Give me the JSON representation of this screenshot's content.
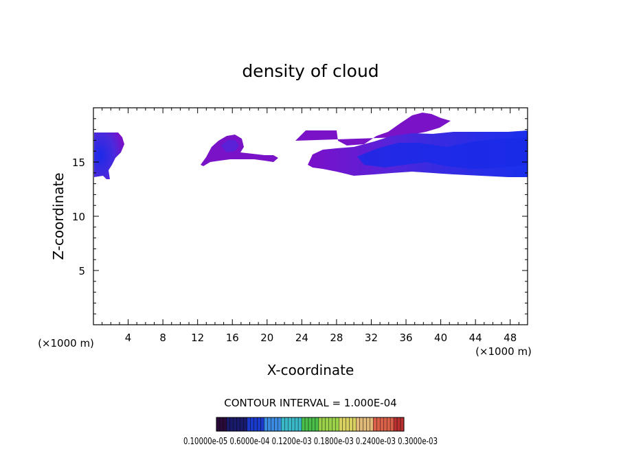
{
  "chart_data": {
    "type": "heatmap",
    "title": "density of cloud",
    "xlabel": "X-coordinate",
    "ylabel": "Z-coordinate",
    "x_unit_label": "(×1000 m)",
    "y_unit_label": "(×1000 m)",
    "xlim": [
      0,
      50
    ],
    "ylim": [
      0,
      20
    ],
    "x_ticks": [
      "4",
      "8",
      "12",
      "16",
      "20",
      "24",
      "28",
      "32",
      "36",
      "40",
      "44",
      "48"
    ],
    "x_tick_values": [
      4,
      8,
      12,
      16,
      20,
      24,
      28,
      32,
      36,
      40,
      44,
      48
    ],
    "y_ticks": [
      "5",
      "10",
      "15"
    ],
    "y_tick_values": [
      5,
      10,
      15
    ],
    "contour_interval_label": "CONTOUR INTERVAL = 1.000E-04",
    "colorbar_labels": "0.10000e-05 0.6000e-04 0.1200e-03 0.1800e-03 0.2400e-03 0.3000e-03",
    "colorbar_colors": [
      "#2a0a3a",
      "#1a1a6a",
      "#1a3acc",
      "#3a8ae0",
      "#3ab8c8",
      "#4ac04a",
      "#9ad04a",
      "#d8d060",
      "#e0b878",
      "#d86048",
      "#b83030"
    ],
    "field_colors": {
      "low": "#7a10c8",
      "mid": "#4a2adc",
      "high": "#1a2ae8"
    },
    "cloud_regions": [
      {
        "name": "left-cloud",
        "x": [
          0,
          3.5
        ],
        "z": [
          13.2,
          17.4
        ],
        "peak": "high"
      },
      {
        "name": "middle-cloud",
        "x": [
          12.3,
          21
        ],
        "z": [
          14.6,
          17.2
        ],
        "peak": "low"
      },
      {
        "name": "right-cloud",
        "x": [
          23.5,
          50
        ],
        "z": [
          13.6,
          19.2
        ],
        "peak": "high"
      }
    ]
  }
}
